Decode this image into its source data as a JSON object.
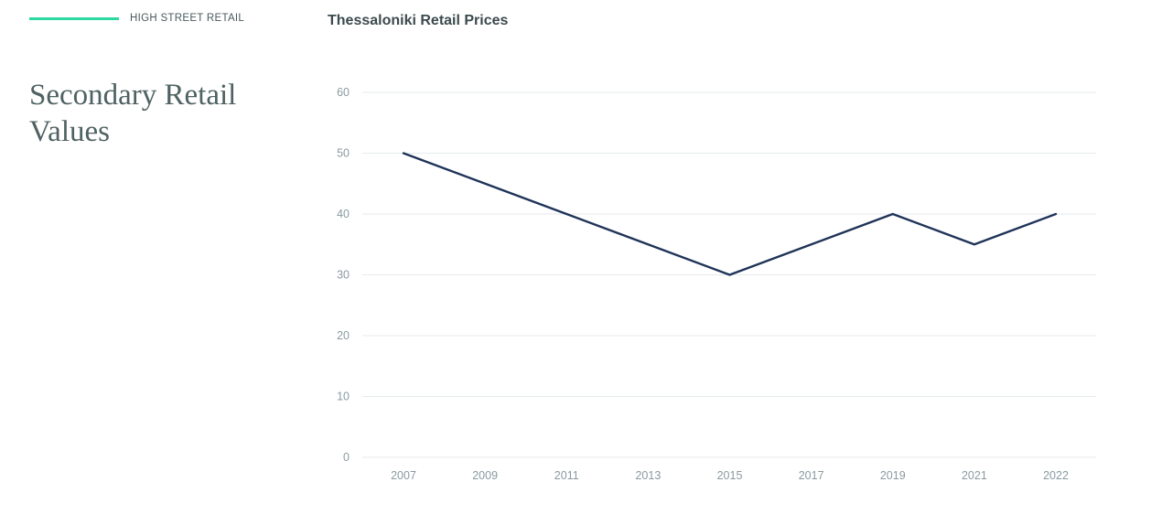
{
  "legend": {
    "label": "HIGH STREET RETAIL",
    "color": "#2bd9a0"
  },
  "section": {
    "title": "Secondary Retail Values"
  },
  "chart_data": {
    "type": "line",
    "title": "Thessaloniki Retail Prices",
    "xlabel": "",
    "ylabel": "",
    "ylim": [
      0,
      60
    ],
    "yticks": [
      0,
      10,
      20,
      30,
      40,
      50,
      60
    ],
    "grid": true,
    "categories": [
      "2007",
      "2009",
      "2011",
      "2013",
      "2015",
      "2017",
      "2019",
      "2021",
      "2022"
    ],
    "series": [
      {
        "name": "High Street Retail",
        "color": "#1f3358",
        "values": [
          50,
          45,
          40,
          35,
          30,
          35,
          40,
          35,
          40
        ]
      }
    ]
  }
}
